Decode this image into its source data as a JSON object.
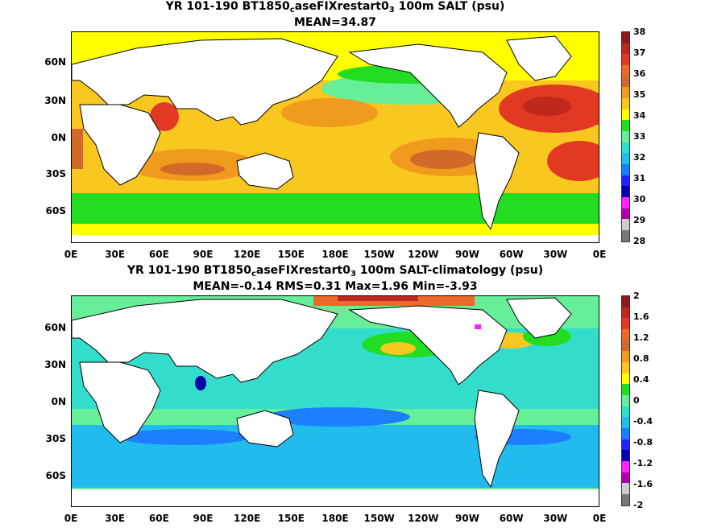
{
  "panels": [
    {
      "title_prefix": "YR 101-190 BT1850",
      "title_sub1": "c",
      "title_mid": "aseFIXrestart0",
      "title_sub2": "3",
      "title_suffix": " 100m SALT (psu)",
      "stats": "MEAN=34.87",
      "colorbar_labels": [
        "38",
        "37",
        "36",
        "35",
        "34",
        "33",
        "32",
        "31",
        "30",
        "29",
        "28"
      ],
      "colorbar_colors": [
        "#8b1a1a",
        "#c0281e",
        "#e23a22",
        "#ee6a2a",
        "#d2692a",
        "#f09a1e",
        "#f8c820",
        "#ffff00",
        "#22dd22",
        "#66ee99",
        "#33ddcc",
        "#22bbee",
        "#1b7fff",
        "#2222ff",
        "#0000aa",
        "#ff22ff",
        "#aa00aa",
        "#cccccc",
        "#777777"
      ]
    },
    {
      "title_prefix": "YR 101-190 BT1850",
      "title_sub1": "c",
      "title_mid": "aseFIXrestart0",
      "title_sub2": "3",
      "title_suffix": " 100m SALT-climatology (psu)",
      "stats": "MEAN=-0.14   RMS=0.31   Max=1.96   Min=-3.93",
      "colorbar_labels": [
        "2",
        "1.6",
        "1.2",
        "0.8",
        "0.4",
        "0",
        "-0.4",
        "-0.8",
        "-1.2",
        "-1.6",
        "-2"
      ],
      "colorbar_colors": [
        "#8b1a1a",
        "#c0281e",
        "#e23a22",
        "#ee6a2a",
        "#d2692a",
        "#f09a1e",
        "#f8c820",
        "#ffff00",
        "#22dd22",
        "#66ee99",
        "#33ddcc",
        "#22bbee",
        "#1b7fff",
        "#2222ff",
        "#0000aa",
        "#ff22ff",
        "#aa00aa",
        "#cccccc",
        "#777777"
      ]
    }
  ],
  "lat_labels": [
    "60N",
    "30N",
    "0N",
    "30S",
    "60S"
  ],
  "lon_labels": [
    "0E",
    "30E",
    "60E",
    "90E",
    "120E",
    "150E",
    "180E",
    "150W",
    "120W",
    "90W",
    "60W",
    "30W",
    "0E"
  ]
}
